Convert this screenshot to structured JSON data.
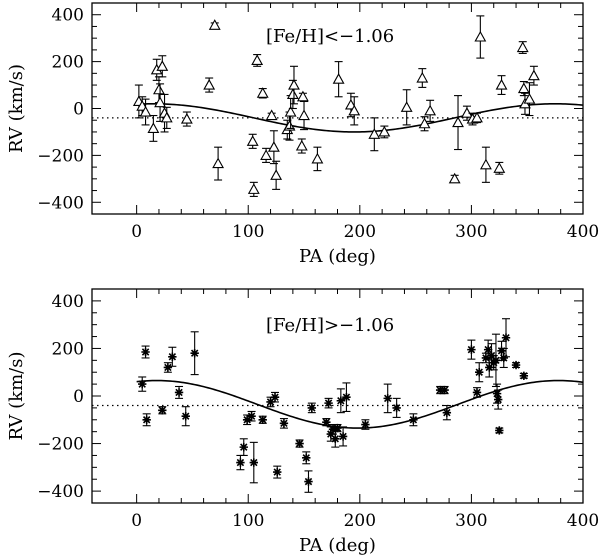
{
  "chart_data": [
    {
      "type": "scatter",
      "title": "",
      "annotation": "[Fe/H]<−1.06",
      "marker": "triangle",
      "xlabel": "PA (deg)",
      "ylabel": "RV (km/s)",
      "xlim": [
        -40,
        400
      ],
      "ylim": [
        -450,
        450
      ],
      "xticks": [
        0,
        100,
        200,
        300,
        400
      ],
      "yticks": [
        -400,
        -200,
        0,
        200,
        400
      ],
      "xtick_labels": [
        "0",
        "100",
        "200",
        "300",
        "400"
      ],
      "ytick_labels": [
        "−400",
        "−200",
        "0",
        "200",
        "400"
      ],
      "reference_line": {
        "y": -40,
        "style": "dotted"
      },
      "model_curve": {
        "type": "sine",
        "offset": -40,
        "amplitude": 60,
        "peak_pa": 15
      },
      "points": [
        {
          "x": 2,
          "y": 30,
          "err": 70
        },
        {
          "x": 5,
          "y": 10,
          "err": 40
        },
        {
          "x": 8,
          "y": -15,
          "err": 55
        },
        {
          "x": 15,
          "y": -85,
          "err": 55
        },
        {
          "x": 18,
          "y": 165,
          "err": 45
        },
        {
          "x": 20,
          "y": 80,
          "err": 55
        },
        {
          "x": 21,
          "y": 25,
          "err": 80
        },
        {
          "x": 23,
          "y": 180,
          "err": 45
        },
        {
          "x": 25,
          "y": -20,
          "err": 80
        },
        {
          "x": 27,
          "y": -40,
          "err": 45
        },
        {
          "x": 45,
          "y": -45,
          "err": 30
        },
        {
          "x": 65,
          "y": 100,
          "err": 30
        },
        {
          "x": 70,
          "y": 355,
          "err": 10
        },
        {
          "x": 73,
          "y": -235,
          "err": 70
        },
        {
          "x": 104,
          "y": -140,
          "err": 30
        },
        {
          "x": 105,
          "y": -345,
          "err": 30
        },
        {
          "x": 108,
          "y": 205,
          "err": 25
        },
        {
          "x": 113,
          "y": 65,
          "err": 20
        },
        {
          "x": 116,
          "y": -200,
          "err": 30
        },
        {
          "x": 121,
          "y": -30,
          "err": 10
        },
        {
          "x": 123,
          "y": -165,
          "err": 70
        },
        {
          "x": 125,
          "y": -285,
          "err": 60
        },
        {
          "x": 135,
          "y": -90,
          "err": 40
        },
        {
          "x": 137,
          "y": -75,
          "err": 60
        },
        {
          "x": 138,
          "y": -15,
          "err": 70
        },
        {
          "x": 140,
          "y": 60,
          "err": 60
        },
        {
          "x": 141,
          "y": 100,
          "err": 80
        },
        {
          "x": 148,
          "y": -160,
          "err": 30
        },
        {
          "x": 149,
          "y": 50,
          "err": 15
        },
        {
          "x": 150,
          "y": -30,
          "err": 60
        },
        {
          "x": 162,
          "y": -215,
          "err": 50
        },
        {
          "x": 181,
          "y": 125,
          "err": 75
        },
        {
          "x": 192,
          "y": 15,
          "err": 50
        },
        {
          "x": 195,
          "y": -10,
          "err": 60
        },
        {
          "x": 213,
          "y": -110,
          "err": 70
        },
        {
          "x": 222,
          "y": -100,
          "err": 25
        },
        {
          "x": 242,
          "y": 5,
          "err": 75
        },
        {
          "x": 256,
          "y": 130,
          "err": 40
        },
        {
          "x": 258,
          "y": -65,
          "err": 30
        },
        {
          "x": 263,
          "y": -10,
          "err": 45
        },
        {
          "x": 285,
          "y": -300,
          "err": 15
        },
        {
          "x": 288,
          "y": -60,
          "err": 115
        },
        {
          "x": 296,
          "y": -20,
          "err": 30
        },
        {
          "x": 301,
          "y": -45,
          "err": 25
        },
        {
          "x": 305,
          "y": -40,
          "err": 20
        },
        {
          "x": 308,
          "y": 305,
          "err": 90
        },
        {
          "x": 313,
          "y": -240,
          "err": 75
        },
        {
          "x": 325,
          "y": -255,
          "err": 25
        },
        {
          "x": 327,
          "y": 100,
          "err": 40
        },
        {
          "x": 346,
          "y": 260,
          "err": 25
        },
        {
          "x": 347,
          "y": 85,
          "err": 30
        },
        {
          "x": 348,
          "y": 20,
          "err": 45
        },
        {
          "x": 352,
          "y": 40,
          "err": 70
        },
        {
          "x": 356,
          "y": 140,
          "err": 40
        }
      ]
    },
    {
      "type": "scatter",
      "title": "",
      "annotation": "[Fe/H]>−1.06",
      "marker": "asterisk",
      "xlabel": "PA (deg)",
      "ylabel": "RV (km/s)",
      "xlim": [
        -40,
        400
      ],
      "ylim": [
        -450,
        450
      ],
      "xticks": [
        0,
        100,
        200,
        300,
        400
      ],
      "yticks": [
        -400,
        -200,
        0,
        200,
        400
      ],
      "xtick_labels": [
        "0",
        "100",
        "200",
        "300",
        "400"
      ],
      "ytick_labels": [
        "−400",
        "−200",
        "0",
        "200",
        "400"
      ],
      "reference_line": {
        "y": -40,
        "style": "dotted"
      },
      "model_curve": {
        "type": "sine",
        "offset": -35,
        "amplitude": 100,
        "peak_pa": 18
      },
      "points": [
        {
          "x": 5,
          "y": 50,
          "err": 30
        },
        {
          "x": 8,
          "y": 185,
          "err": 25
        },
        {
          "x": 9,
          "y": -100,
          "err": 25
        },
        {
          "x": 23,
          "y": -60,
          "err": 15
        },
        {
          "x": 28,
          "y": 120,
          "err": 20
        },
        {
          "x": 32,
          "y": 165,
          "err": 40
        },
        {
          "x": 38,
          "y": 15,
          "err": 25
        },
        {
          "x": 44,
          "y": -85,
          "err": 40
        },
        {
          "x": 52,
          "y": 180,
          "err": 90
        },
        {
          "x": 93,
          "y": -280,
          "err": 30
        },
        {
          "x": 96,
          "y": -215,
          "err": 35
        },
        {
          "x": 99,
          "y": -100,
          "err": 20
        },
        {
          "x": 103,
          "y": -85,
          "err": 20
        },
        {
          "x": 105,
          "y": -280,
          "err": 85
        },
        {
          "x": 113,
          "y": -100,
          "err": 15
        },
        {
          "x": 120,
          "y": -25,
          "err": 20
        },
        {
          "x": 124,
          "y": -5,
          "err": 20
        },
        {
          "x": 126,
          "y": -320,
          "err": 25
        },
        {
          "x": 132,
          "y": -115,
          "err": 20
        },
        {
          "x": 146,
          "y": -200,
          "err": 15
        },
        {
          "x": 152,
          "y": -260,
          "err": 25
        },
        {
          "x": 154,
          "y": -360,
          "err": 45
        },
        {
          "x": 157,
          "y": -50,
          "err": 20
        },
        {
          "x": 170,
          "y": -110,
          "err": 15
        },
        {
          "x": 172,
          "y": -30,
          "err": 20
        },
        {
          "x": 174,
          "y": -160,
          "err": 30
        },
        {
          "x": 176,
          "y": -140,
          "err": 20
        },
        {
          "x": 178,
          "y": -180,
          "err": 35
        },
        {
          "x": 180,
          "y": -135,
          "err": 15
        },
        {
          "x": 183,
          "y": -20,
          "err": 50
        },
        {
          "x": 185,
          "y": -170,
          "err": 40
        },
        {
          "x": 188,
          "y": -5,
          "err": 60
        },
        {
          "x": 205,
          "y": -120,
          "err": 20
        },
        {
          "x": 225,
          "y": -10,
          "err": 60
        },
        {
          "x": 233,
          "y": -50,
          "err": 40
        },
        {
          "x": 248,
          "y": -100,
          "err": 25
        },
        {
          "x": 272,
          "y": 25,
          "err": 15
        },
        {
          "x": 276,
          "y": 25,
          "err": 15
        },
        {
          "x": 278,
          "y": -70,
          "err": 30
        },
        {
          "x": 300,
          "y": 195,
          "err": 40
        },
        {
          "x": 305,
          "y": 15,
          "err": 20
        },
        {
          "x": 307,
          "y": 100,
          "err": 40
        },
        {
          "x": 313,
          "y": 160,
          "err": 20
        },
        {
          "x": 315,
          "y": 195,
          "err": 40
        },
        {
          "x": 316,
          "y": 120,
          "err": 40
        },
        {
          "x": 318,
          "y": 170,
          "err": 50
        },
        {
          "x": 320,
          "y": 140,
          "err": 30
        },
        {
          "x": 322,
          "y": 150,
          "err": 110
        },
        {
          "x": 323,
          "y": 10,
          "err": 40
        },
        {
          "x": 324,
          "y": -15,
          "err": 40
        },
        {
          "x": 325,
          "y": -145,
          "err": 10
        },
        {
          "x": 327,
          "y": 190,
          "err": 40
        },
        {
          "x": 329,
          "y": 160,
          "err": 40
        },
        {
          "x": 331,
          "y": 245,
          "err": 80
        },
        {
          "x": 340,
          "y": 130,
          "err": 10
        },
        {
          "x": 347,
          "y": 85,
          "err": 10
        }
      ]
    }
  ]
}
